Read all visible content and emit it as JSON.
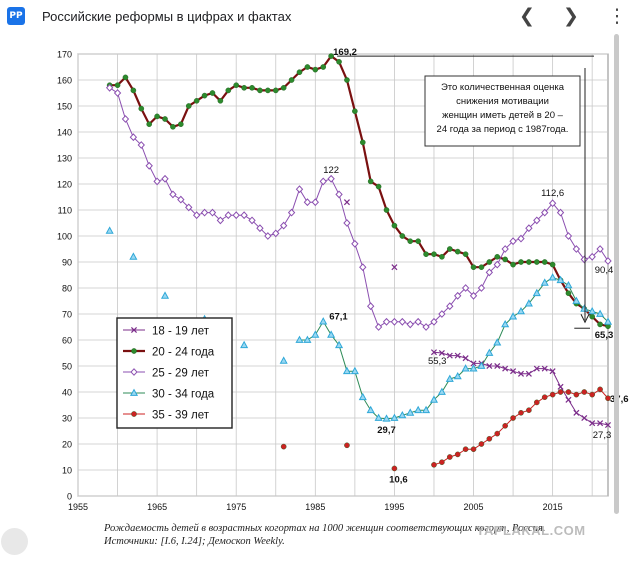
{
  "header": {
    "title": "Российские реформы в цифрах и фактах",
    "favicon_text": "РР",
    "prev_icon": "chevron-left",
    "next_icon": "chevron-right",
    "more_icon": "vertical-dots"
  },
  "caption": "Рождаемость детей в возрастных когортах на 1000 женщин соответствующих когорт, Россия. Источники: [I.6, I.24]; Демоскоп Weekly.",
  "watermark": "YAPLAKAL.COM",
  "annotation": "Это количественная оценка снижения мотивации женщин иметь детей в 20 – 24 года за период с 1987года.",
  "chart_data": {
    "type": "line",
    "title": "",
    "xlabel": "",
    "ylabel": "",
    "xlim": [
      1955,
      2022
    ],
    "ylim": [
      0,
      170
    ],
    "x_ticks": [
      "1955",
      "1965",
      "1975",
      "1985",
      "1995",
      "2005",
      "2015"
    ],
    "y_ticks": [
      "0",
      "10",
      "20",
      "30",
      "40",
      "50",
      "60",
      "70",
      "80",
      "90",
      "100",
      "110",
      "120",
      "130",
      "140",
      "150",
      "160",
      "170"
    ],
    "grid": true,
    "legend_position": "left-middle",
    "series": [
      {
        "name": "18 - 19 лет",
        "color": "#7b2c8a",
        "marker": "x",
        "points": [
          [
            1989,
            113
          ],
          [
            1995,
            88
          ],
          [
            2000,
            55.3
          ],
          [
            2001,
            55
          ],
          [
            2002,
            54
          ],
          [
            2003,
            54
          ],
          [
            2004,
            53
          ],
          [
            2005,
            51
          ],
          [
            2006,
            51
          ],
          [
            2007,
            50
          ],
          [
            2008,
            50
          ],
          [
            2009,
            49
          ],
          [
            2010,
            48
          ],
          [
            2011,
            47
          ],
          [
            2012,
            47
          ],
          [
            2013,
            49
          ],
          [
            2014,
            49
          ],
          [
            2015,
            48
          ],
          [
            2016,
            42
          ],
          [
            2017,
            37
          ],
          [
            2018,
            32
          ],
          [
            2019,
            30
          ],
          [
            2020,
            28
          ],
          [
            2021,
            28
          ],
          [
            2022,
            27.3
          ]
        ]
      },
      {
        "name": "20 - 24 года",
        "color": "#2d8a2d",
        "line_color": "#7a1010",
        "marker": "circle",
        "points": [
          [
            1959,
            158
          ],
          [
            1960,
            158
          ],
          [
            1961,
            161
          ],
          [
            1962,
            156
          ],
          [
            1963,
            149
          ],
          [
            1964,
            143
          ],
          [
            1965,
            146
          ],
          [
            1966,
            145
          ],
          [
            1967,
            142
          ],
          [
            1968,
            143
          ],
          [
            1969,
            150
          ],
          [
            1970,
            152
          ],
          [
            1971,
            154
          ],
          [
            1972,
            155
          ],
          [
            1973,
            152
          ],
          [
            1974,
            156
          ],
          [
            1975,
            158
          ],
          [
            1976,
            157
          ],
          [
            1977,
            157
          ],
          [
            1978,
            156
          ],
          [
            1979,
            156
          ],
          [
            1980,
            156
          ],
          [
            1981,
            157
          ],
          [
            1982,
            160
          ],
          [
            1983,
            163
          ],
          [
            1984,
            165
          ],
          [
            1985,
            164
          ],
          [
            1986,
            165
          ],
          [
            1987,
            169.2
          ],
          [
            1988,
            167
          ],
          [
            1989,
            160
          ],
          [
            1990,
            148
          ],
          [
            1991,
            136
          ],
          [
            1992,
            121
          ],
          [
            1993,
            119
          ],
          [
            1994,
            110
          ],
          [
            1995,
            104
          ],
          [
            1996,
            100
          ],
          [
            1997,
            98
          ],
          [
            1998,
            98
          ],
          [
            1999,
            93
          ],
          [
            2000,
            93
          ],
          [
            2001,
            92
          ],
          [
            2002,
            95
          ],
          [
            2003,
            94
          ],
          [
            2004,
            93
          ],
          [
            2005,
            88
          ],
          [
            2006,
            88
          ],
          [
            2007,
            90
          ],
          [
            2008,
            92
          ],
          [
            2009,
            91
          ],
          [
            2010,
            89
          ],
          [
            2011,
            90
          ],
          [
            2012,
            90
          ],
          [
            2013,
            90
          ],
          [
            2014,
            90
          ],
          [
            2015,
            89
          ],
          [
            2016,
            83
          ],
          [
            2017,
            78
          ],
          [
            2018,
            74
          ],
          [
            2019,
            72
          ],
          [
            2020,
            69
          ],
          [
            2021,
            66
          ],
          [
            2022,
            65.3
          ]
        ]
      },
      {
        "name": "25 - 29 лет",
        "color": "#8b4fb0",
        "marker": "diamond",
        "points": [
          [
            1959,
            157
          ],
          [
            1960,
            155
          ],
          [
            1961,
            145
          ],
          [
            1962,
            138
          ],
          [
            1963,
            135
          ],
          [
            1964,
            127
          ],
          [
            1965,
            121
          ],
          [
            1966,
            122
          ],
          [
            1967,
            116
          ],
          [
            1968,
            114
          ],
          [
            1969,
            111
          ],
          [
            1970,
            108
          ],
          [
            1971,
            109
          ],
          [
            1972,
            109
          ],
          [
            1973,
            106
          ],
          [
            1974,
            108
          ],
          [
            1975,
            108
          ],
          [
            1976,
            108
          ],
          [
            1977,
            106
          ],
          [
            1978,
            103
          ],
          [
            1979,
            100
          ],
          [
            1980,
            101
          ],
          [
            1981,
            104
          ],
          [
            1982,
            109
          ],
          [
            1983,
            118
          ],
          [
            1984,
            113
          ],
          [
            1985,
            113
          ],
          [
            1986,
            121
          ],
          [
            1987,
            122
          ],
          [
            1988,
            116
          ],
          [
            1989,
            105
          ],
          [
            1990,
            97
          ],
          [
            1991,
            88
          ],
          [
            1992,
            73
          ],
          [
            1993,
            65
          ],
          [
            1994,
            67
          ],
          [
            1995,
            67
          ],
          [
            1996,
            67
          ],
          [
            1997,
            66
          ],
          [
            1998,
            67
          ],
          [
            1999,
            65
          ],
          [
            2000,
            67
          ],
          [
            2001,
            70
          ],
          [
            2002,
            73
          ],
          [
            2003,
            77
          ],
          [
            2004,
            80
          ],
          [
            2005,
            77
          ],
          [
            2006,
            80
          ],
          [
            2007,
            86
          ],
          [
            2008,
            89
          ],
          [
            2009,
            95
          ],
          [
            2010,
            98
          ],
          [
            2011,
            99
          ],
          [
            2012,
            103
          ],
          [
            2013,
            106
          ],
          [
            2014,
            109
          ],
          [
            2015,
            112.6
          ],
          [
            2016,
            109
          ],
          [
            2017,
            100
          ],
          [
            2018,
            95
          ],
          [
            2019,
            91
          ],
          [
            2020,
            92
          ],
          [
            2021,
            95
          ],
          [
            2022,
            90.4
          ]
        ]
      },
      {
        "name": "30 - 34 года",
        "color": "#2fa8d8",
        "line_color": "#2e8b57",
        "marker": "triangle",
        "points": [
          [
            1959,
            102
          ],
          [
            1962,
            92
          ],
          [
            1966,
            77
          ],
          [
            1971,
            68
          ],
          [
            1976,
            58
          ],
          [
            1981,
            52
          ],
          [
            1983,
            60
          ],
          [
            1984,
            60
          ],
          [
            1985,
            62
          ],
          [
            1986,
            67.1
          ],
          [
            1987,
            62
          ],
          [
            1988,
            58
          ],
          [
            1989,
            48
          ],
          [
            1990,
            48
          ],
          [
            1991,
            38
          ],
          [
            1992,
            33
          ],
          [
            1993,
            30
          ],
          [
            1994,
            29.7
          ],
          [
            1995,
            30
          ],
          [
            1996,
            31
          ],
          [
            1997,
            32
          ],
          [
            1998,
            33
          ],
          [
            1999,
            33
          ],
          [
            2000,
            37
          ],
          [
            2001,
            40
          ],
          [
            2002,
            45
          ],
          [
            2003,
            46
          ],
          [
            2004,
            49
          ],
          [
            2005,
            49
          ],
          [
            2006,
            50
          ],
          [
            2007,
            55
          ],
          [
            2008,
            59
          ],
          [
            2009,
            66
          ],
          [
            2010,
            69
          ],
          [
            2011,
            71
          ],
          [
            2012,
            74
          ],
          [
            2013,
            78
          ],
          [
            2014,
            82
          ],
          [
            2015,
            84
          ],
          [
            2016,
            83
          ],
          [
            2017,
            81
          ],
          [
            2018,
            75
          ],
          [
            2019,
            72
          ],
          [
            2020,
            71
          ],
          [
            2021,
            70
          ],
          [
            2022,
            67
          ]
        ]
      },
      {
        "name": "35 - 39 лет",
        "color": "#cc2222",
        "marker": "circle",
        "points": [
          [
            1981,
            19
          ],
          [
            1989,
            19.5
          ],
          [
            1995,
            10.6
          ],
          [
            2000,
            12
          ],
          [
            2001,
            13
          ],
          [
            2002,
            15
          ],
          [
            2003,
            16
          ],
          [
            2004,
            18
          ],
          [
            2005,
            18
          ],
          [
            2006,
            20
          ],
          [
            2007,
            22
          ],
          [
            2008,
            24
          ],
          [
            2009,
            27
          ],
          [
            2010,
            30
          ],
          [
            2011,
            32
          ],
          [
            2012,
            33
          ],
          [
            2013,
            36
          ],
          [
            2014,
            38
          ],
          [
            2015,
            39
          ],
          [
            2016,
            40
          ],
          [
            2017,
            40
          ],
          [
            2018,
            39
          ],
          [
            2019,
            40
          ],
          [
            2020,
            39
          ],
          [
            2021,
            41
          ],
          [
            2022,
            37.6
          ]
        ]
      }
    ],
    "data_labels": [
      {
        "text": "169,2",
        "x": 1987,
        "y": 169.2
      },
      {
        "text": "122",
        "x": 1987,
        "y": 122
      },
      {
        "text": "112,6",
        "x": 2015,
        "y": 112.6
      },
      {
        "text": "90,4",
        "x": 2022,
        "y": 90.4
      },
      {
        "text": "67,1",
        "x": 1986,
        "y": 67.1
      },
      {
        "text": "65,3",
        "x": 2022,
        "y": 65.3
      },
      {
        "text": "55,3",
        "x": 2000,
        "y": 55.3
      },
      {
        "text": "29,7",
        "x": 1994,
        "y": 29.7
      },
      {
        "text": "10,6",
        "x": 1995,
        "y": 10.6
      },
      {
        "text": "37,6",
        "x": 2022,
        "y": 37.6
      },
      {
        "text": "27,3",
        "x": 2022,
        "y": 27.3
      }
    ]
  }
}
